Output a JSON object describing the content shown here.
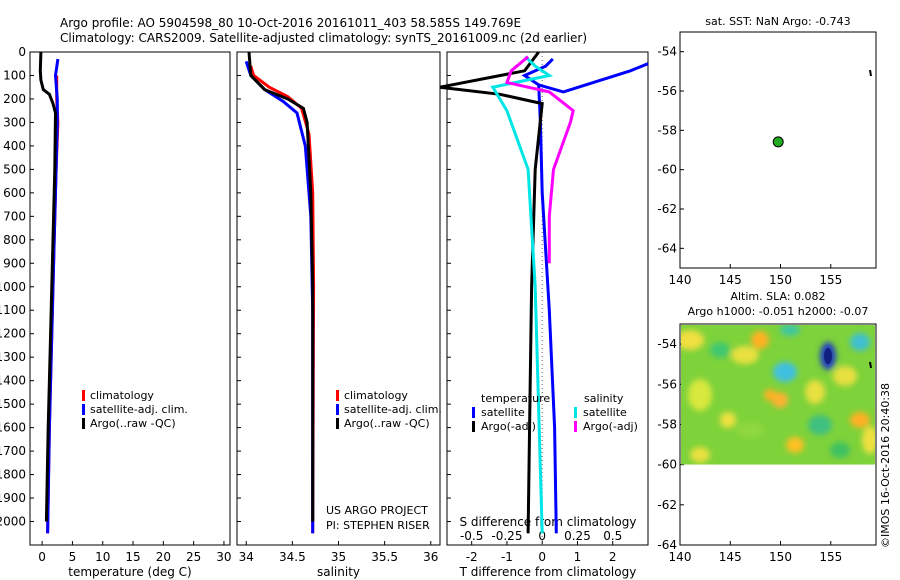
{
  "header": {
    "line1": "Argo profile: AO 5904598_80 10-Oct-2016 20161011_403 58.585S 149.769E",
    "line2": "Climatology: CARS2009. Satellite-adjusted climatology: synTS_20161009.nc (2d earlier)"
  },
  "colors": {
    "climatology": "#ff0000",
    "satellite": "#0000ff",
    "argo": "#000000",
    "salinity_satellite": "#00e5e5",
    "salinity_argo": "#ff00ff",
    "float_marker": "#22aa22"
  },
  "chart_data": [
    {
      "type": "line",
      "id": "temperature-profile",
      "xlabel": "temperature (deg C)",
      "ylabel": "",
      "xlim": [
        -2,
        31
      ],
      "ylim": [
        2100,
        0
      ],
      "xticks": [
        0,
        5,
        10,
        15,
        20,
        25,
        30
      ],
      "yticks": [
        0,
        100,
        200,
        300,
        400,
        500,
        600,
        700,
        800,
        900,
        1000,
        1100,
        1200,
        1300,
        1400,
        1500,
        1600,
        1700,
        1800,
        1900,
        2000
      ],
      "legend": [
        "climatology",
        "satellite-adj. clim.",
        "Argo(..raw -QC)"
      ],
      "series": [
        {
          "name": "climatology",
          "x": [
            2.4,
            2.4,
            2.4,
            2.6,
            2.3,
            2.0,
            1.6,
            1.2,
            0.9
          ],
          "y": [
            100,
            150,
            200,
            300,
            500,
            800,
            1200,
            1600,
            2050
          ]
        },
        {
          "name": "satellite-adj. clim.",
          "x": [
            2.6,
            2.2,
            2.5,
            2.5,
            2.3,
            2.0,
            1.6,
            1.2,
            0.9
          ],
          "y": [
            30,
            100,
            200,
            300,
            500,
            800,
            1200,
            1600,
            2050
          ]
        },
        {
          "name": "Argo(..raw -QC)",
          "x": [
            -0.2,
            -0.3,
            -0.2,
            0.2,
            1.2,
            1.8,
            2.2,
            2.1,
            1.8,
            1.4,
            1.0,
            0.7
          ],
          "y": [
            0,
            80,
            120,
            160,
            180,
            220,
            260,
            500,
            800,
            1200,
            1600,
            2000
          ]
        }
      ]
    },
    {
      "type": "line",
      "id": "salinity-profile",
      "xlabel": "salinity",
      "ylabel": "",
      "xlim": [
        33.9,
        36.1
      ],
      "ylim": [
        2100,
        0
      ],
      "xticks": [
        34,
        34.5,
        35,
        35.5,
        36
      ],
      "legend": [
        "climatology",
        "satellite-adj. clim.",
        "Argo(..raw -QC)"
      ],
      "series": [
        {
          "name": "climatology",
          "x": [
            34.05,
            34.08,
            34.25,
            34.45,
            34.6,
            34.68,
            34.72,
            34.73,
            34.72
          ],
          "y": [
            60,
            100,
            150,
            190,
            240,
            350,
            600,
            1000,
            2050
          ]
        },
        {
          "name": "satellite-adj. clim.",
          "x": [
            34.0,
            34.05,
            34.2,
            34.4,
            34.55,
            34.64,
            34.7,
            34.72,
            34.72
          ],
          "y": [
            40,
            100,
            160,
            210,
            260,
            400,
            700,
            1100,
            2050
          ]
        },
        {
          "name": "Argo(..raw -QC)",
          "x": [
            34.03,
            34.05,
            34.2,
            34.45,
            34.62,
            34.66,
            34.7,
            34.72,
            34.72
          ],
          "y": [
            0,
            100,
            160,
            200,
            240,
            300,
            600,
            1000,
            2000
          ]
        }
      ],
      "annotation": [
        "US ARGO PROJECT",
        "PI: STEPHEN RISER"
      ]
    },
    {
      "type": "line",
      "id": "difference-profile",
      "xlabel": "T difference from climatology",
      "xlabel_top": "S difference from climatology",
      "xlim": [
        -2.7,
        3.0
      ],
      "ylim": [
        2100,
        0
      ],
      "xticks": [
        -2,
        -1,
        0,
        1,
        2
      ],
      "xticks_top": [
        -0.5,
        -0.25,
        0,
        0.25,
        0.5
      ],
      "legend_titles": [
        "temperature",
        "salinity"
      ],
      "legend": [
        "satellite",
        "Argo(-adj)",
        "satellite",
        "Argo(-adj)"
      ],
      "series": [
        {
          "name": "temperature satellite",
          "axis": "T",
          "x": [
            0.3,
            0.1,
            -0.5,
            -0.1,
            0.6,
            2.5,
            3.0
          ],
          "y": [
            30,
            60,
            100,
            140,
            170,
            80,
            50
          ]
        },
        {
          "name": "temperature satellite deep",
          "axis": "T",
          "x": [
            -0.1,
            -0.05,
            0.0,
            0.2,
            0.35,
            0.4
          ],
          "y": [
            140,
            300,
            600,
            1100,
            1600,
            2050
          ]
        },
        {
          "name": "temperature Argo(-adj)",
          "axis": "T",
          "x": [
            -0.1,
            -0.5,
            -2.9,
            -1.2,
            0.0,
            -0.2,
            -0.3,
            -0.35,
            -0.4
          ],
          "y": [
            0,
            80,
            150,
            180,
            220,
            500,
            1000,
            1500,
            2050
          ]
        },
        {
          "name": "salinity satellite",
          "axis": "S",
          "x": [
            -0.12,
            -0.05,
            0.05,
            -0.35,
            -0.25,
            -0.1,
            -0.05,
            0.0
          ],
          "y": [
            20,
            60,
            100,
            150,
            250,
            500,
            1000,
            2050
          ]
        },
        {
          "name": "salinity Argo(-adj)",
          "axis": "S",
          "x": [
            -0.1,
            -0.22,
            -0.25,
            0.05,
            0.22,
            0.2,
            0.08,
            0.05,
            0.05
          ],
          "y": [
            20,
            80,
            130,
            170,
            250,
            300,
            500,
            700,
            900
          ]
        }
      ]
    },
    {
      "type": "scatter",
      "id": "sst-map",
      "title": "sat. SST: NaN Argo: -0.743",
      "xlim": [
        140,
        159.5
      ],
      "ylim": [
        -65,
        -53
      ],
      "xticks": [
        140,
        145,
        150,
        155
      ],
      "yticks": [
        -54,
        -56,
        -58,
        -60,
        -62,
        -64
      ],
      "points": [
        {
          "x": 149.769,
          "y": -58.585
        }
      ]
    },
    {
      "type": "heatmap",
      "id": "sla-map",
      "title_line1": "Altim. SLA: 0.082",
      "title_line2": "Argo h1000: -0.051 h2000: -0.07",
      "xlim": [
        140,
        159.5
      ],
      "ylim": [
        -64,
        -53
      ],
      "xticks": [
        140,
        145,
        150,
        155
      ],
      "yticks": [
        -54,
        -56,
        -58,
        -60,
        -62,
        -64
      ],
      "data_extent_lat": [
        -60,
        -53
      ]
    }
  ],
  "stamp": "©IMOS 16-Oct-2016 20:40:38"
}
